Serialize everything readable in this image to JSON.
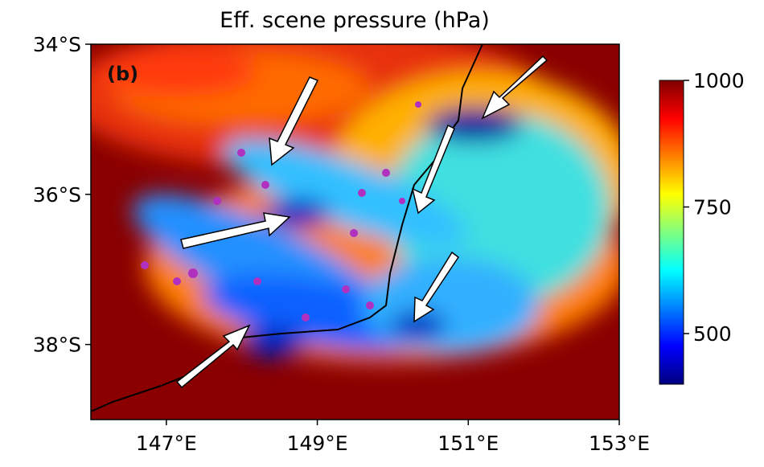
{
  "title": "Eff. scene pressure (hPa)",
  "panel_label": "(b)",
  "map": {
    "xlim": [
      146,
      153
    ],
    "ylim": [
      -39,
      -34
    ],
    "xticks": [
      {
        "value": 147,
        "label": "147°E"
      },
      {
        "value": 149,
        "label": "149°E"
      },
      {
        "value": 151,
        "label": "151°E"
      },
      {
        "value": 153,
        "label": "153°E"
      }
    ],
    "yticks": [
      {
        "value": -34,
        "label": "34°S"
      },
      {
        "value": -36,
        "label": "36°S"
      },
      {
        "value": -38,
        "label": "38°S"
      }
    ]
  },
  "colorbar": {
    "lim": [
      400,
      1000
    ],
    "ticks": [
      500,
      750,
      1000
    ],
    "colormap": "jet"
  }
}
